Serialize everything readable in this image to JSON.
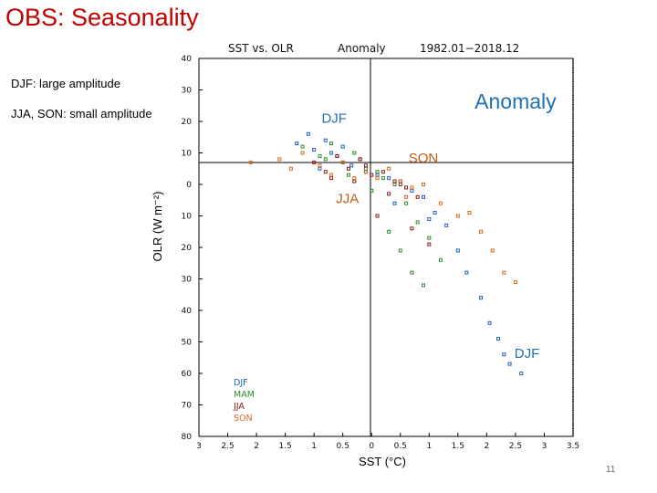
{
  "slide": {
    "title": "OBS: Seasonality",
    "notes": [
      "DJF: large amplitude",
      "JJA, SON: small amplitude"
    ],
    "page_number": "11"
  },
  "chart_data": {
    "type": "scatter",
    "header": {
      "left": "SST  vs.  OLR",
      "middle": "Anomaly",
      "right": "1982.01−2018.12"
    },
    "xlabel": "SST (°C)",
    "ylabel": "OLR (W m⁻²)",
    "xlim": [
      -3,
      3.5
    ],
    "ylim": [
      -80,
      40
    ],
    "xticks": [
      -3,
      -2.5,
      -2,
      -1.5,
      -1,
      -0.5,
      0,
      0.5,
      1,
      1.5,
      2,
      2.5,
      3,
      3.5
    ],
    "xtick_labels": [
      "3",
      "2.5",
      "2",
      "1.5",
      "1",
      "0.5",
      "0",
      "0.5",
      "1",
      "1.5",
      "2",
      "2.5",
      "3",
      "3.5"
    ],
    "yticks": [
      40,
      30,
      20,
      10,
      0,
      -10,
      -20,
      -30,
      -40,
      -50,
      -60,
      -70,
      -80
    ],
    "ytick_labels": [
      "40",
      "30",
      "20",
      "10",
      "0",
      "10",
      "20",
      "30",
      "40",
      "50",
      "60",
      "70",
      "80"
    ],
    "grid": false,
    "legend_position": "bottom-left",
    "annotations": [
      {
        "text": "Anomaly",
        "x": 2.5,
        "y": 24,
        "color": "#1f6fb5",
        "kind": "big"
      },
      {
        "text": "DJF",
        "x": -0.65,
        "y": 19.5,
        "color": "#1f6fb5",
        "kind": "season"
      },
      {
        "text": "SON",
        "x": 0.9,
        "y": 7,
        "color": "#c55a11",
        "kind": "season"
      },
      {
        "text": "JJA",
        "x": -0.42,
        "y": -6,
        "color": "#c55a11",
        "kind": "season"
      },
      {
        "text": "DJF",
        "x": 2.7,
        "y": -55,
        "color": "#1f6fb5",
        "kind": "season"
      }
    ],
    "series": [
      {
        "name": "DJF",
        "color": "#1f5fbf",
        "x": [
          -1.3,
          -1.1,
          -1.0,
          -0.8,
          -0.6,
          -0.5,
          -0.35,
          -0.2,
          -0.1,
          0.1,
          0.3,
          0.5,
          0.7,
          0.9,
          1.1,
          1.3,
          1.5,
          1.65,
          1.9,
          2.05,
          2.2,
          2.3,
          2.4,
          2.6,
          1.0,
          0.4,
          -0.7,
          -0.9
        ],
        "y": [
          13,
          16,
          11,
          14,
          9,
          12,
          6,
          8,
          4,
          3,
          2,
          1,
          -2,
          -4,
          -9,
          -13,
          -21,
          -28,
          -36,
          -44,
          -49,
          -54,
          -57,
          -60,
          -11,
          -6,
          10,
          5
        ]
      },
      {
        "name": "MAM",
        "color": "#2e8b2e",
        "x": [
          -1.2,
          -0.9,
          -0.7,
          -0.5,
          -0.3,
          -0.1,
          0.1,
          0.2,
          0.4,
          0.6,
          0.8,
          1.0,
          1.2,
          -0.4,
          0.0,
          0.3,
          0.5,
          0.7,
          -0.8,
          0.9
        ],
        "y": [
          12,
          9,
          13,
          7,
          10,
          5,
          4,
          2,
          0,
          -6,
          -12,
          -17,
          -24,
          3,
          -2,
          -15,
          -21,
          -28,
          8,
          -32
        ]
      },
      {
        "name": "JJA",
        "color": "#8b1a1a",
        "x": [
          -1.0,
          -0.8,
          -0.6,
          -0.4,
          -0.2,
          0.0,
          0.2,
          0.4,
          0.6,
          0.8,
          -0.3,
          0.1,
          0.3,
          0.5,
          -0.7,
          -0.1,
          0.7,
          1.0
        ],
        "y": [
          7,
          4,
          9,
          5,
          8,
          3,
          4,
          1,
          -1,
          -4,
          1,
          -10,
          -3,
          0,
          2,
          6,
          -14,
          -19
        ]
      },
      {
        "name": "SON",
        "color": "#d2691e",
        "x": [
          -2.1,
          -1.6,
          -1.4,
          -1.2,
          -0.9,
          -0.7,
          -0.5,
          -0.3,
          -0.1,
          0.1,
          0.3,
          0.5,
          0.7,
          0.9,
          1.2,
          1.5,
          1.9,
          2.1,
          2.3,
          2.5,
          1.7,
          0.6
        ],
        "y": [
          7,
          8,
          5,
          10,
          6,
          3,
          7,
          2,
          4,
          2,
          5,
          1,
          -1,
          0,
          -6,
          -10,
          -15,
          -21,
          -28,
          -31,
          -9,
          -4
        ]
      }
    ]
  }
}
